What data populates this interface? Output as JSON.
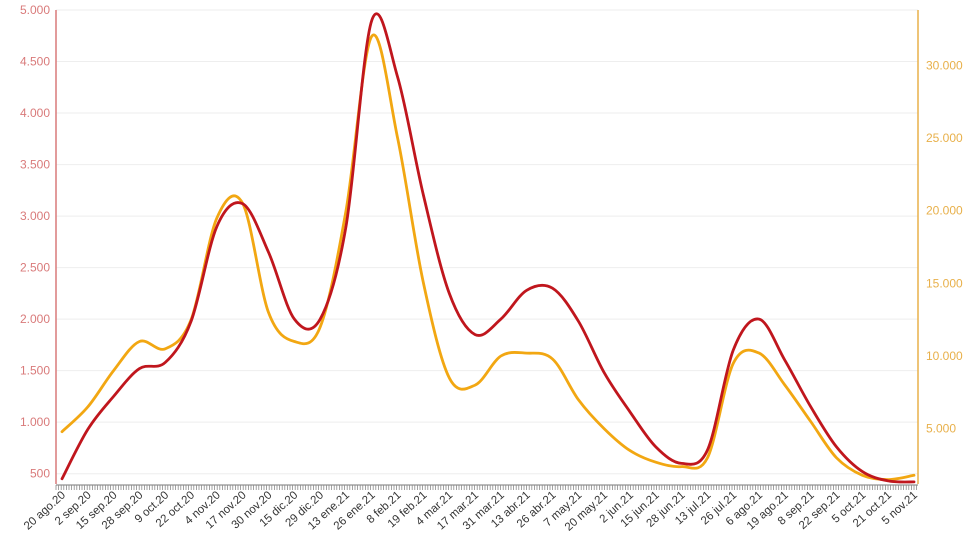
{
  "chart_data": {
    "type": "line",
    "x_labels": [
      "20 ago.20",
      "2 sep.20",
      "15 sep.20",
      "28 sep.20",
      "9 oct.20",
      "22 oct.20",
      "4 nov.20",
      "17 nov.20",
      "30 nov.20",
      "15 dic.20",
      "29 dic.20",
      "13 ene.21",
      "26 ene.21",
      "8 feb.21",
      "19 feb.21",
      "4 mar.21",
      "17 mar.21",
      "31 mar.21",
      "13 abr.21",
      "26 abr.21",
      "7 may.21",
      "20 may.21",
      "2 jun.21",
      "15 jun.21",
      "28 jun.21",
      "13 jul.21",
      "26 jul.21",
      "6 ago.21",
      "19 ago.21",
      "8 sep.21",
      "22 sep.21",
      "5 oct.21",
      "21 oct.21",
      "5 nov.21"
    ],
    "y_left": {
      "ticks": [
        "500",
        "1.000",
        "1.500",
        "2.000",
        "2.500",
        "3.000",
        "3.500",
        "4.000",
        "4.500",
        "5.000"
      ],
      "range": [
        400,
        5000
      ],
      "color": "#d97a7a"
    },
    "y_right": {
      "ticks": [
        "5.000",
        "10.000",
        "15.000",
        "20.000",
        "25.000",
        "30.000"
      ],
      "range": [
        1200,
        33800
      ],
      "color": "#e8b04a"
    },
    "grid": true,
    "series": [
      {
        "axis": "left",
        "color": "#c0161d",
        "x": [
          0,
          1,
          2,
          3,
          4,
          5,
          6,
          7,
          8,
          9,
          10,
          11,
          12,
          13,
          14,
          15,
          16,
          17,
          18,
          19,
          20,
          21,
          22,
          23,
          24,
          25,
          26,
          27,
          28,
          29,
          30,
          31,
          32,
          33
        ],
        "values": [
          450,
          930,
          1250,
          1520,
          1580,
          1980,
          2900,
          3120,
          2650,
          2000,
          2000,
          2900,
          4900,
          4350,
          3200,
          2250,
          1850,
          2000,
          2280,
          2300,
          1980,
          1480,
          1100,
          760,
          600,
          730,
          1700,
          2000,
          1600,
          1150,
          760,
          520,
          430,
          420
        ]
      },
      {
        "axis": "right",
        "color": "#f2a712",
        "x": [
          0,
          1,
          2,
          3,
          4,
          5,
          6,
          7,
          8,
          9,
          10,
          11,
          12,
          13,
          14,
          15,
          16,
          17,
          18,
          19,
          20,
          21,
          22,
          23,
          24,
          25,
          26,
          27,
          28,
          29,
          30,
          31,
          32,
          33
        ],
        "values": [
          4800,
          6500,
          9000,
          11000,
          10500,
          12500,
          19500,
          20500,
          13000,
          11000,
          12000,
          20000,
          32000,
          25000,
          15000,
          8500,
          8000,
          10000,
          10200,
          9800,
          7000,
          5000,
          3500,
          2700,
          2400,
          3000,
          9500,
          10200,
          8000,
          5500,
          3000,
          1800,
          1500,
          1800
        ]
      }
    ]
  }
}
